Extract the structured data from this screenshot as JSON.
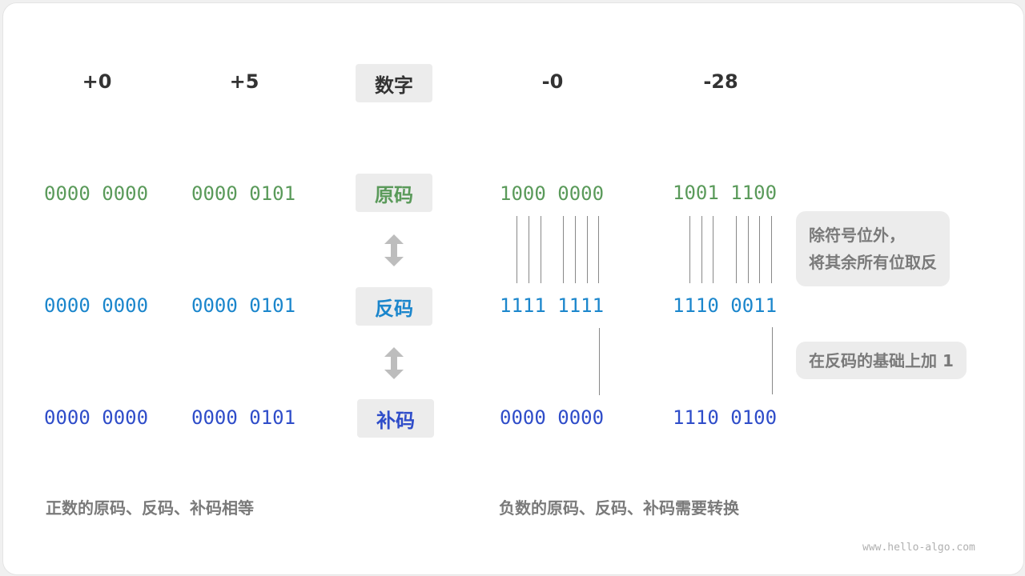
{
  "headers": {
    "pos0": "+0",
    "pos5": "+5",
    "label": "数字",
    "neg0": "-0",
    "neg28": "-28"
  },
  "labels": {
    "original": "原码",
    "ones": "反码",
    "twos": "补码"
  },
  "rows": {
    "original": [
      "0000 0000",
      "0000 0101",
      "1000 0000",
      "1001 1100"
    ],
    "ones": [
      "0000 0000",
      "0000 0101",
      "1111 1111",
      "1110 0011"
    ],
    "twos": [
      "0000 0000",
      "0000 0101",
      "0000 0000",
      "1110 0100"
    ]
  },
  "notes": {
    "invert_line1": "除符号位外，",
    "invert_line2": "将其余所有位取反",
    "add_one": "在反码的基础上加 1"
  },
  "captions": {
    "positive": "正数的原码、反码、补码相等",
    "negative": "负数的原码、反码、补码需要转换"
  },
  "watermark": "www.hello-algo.com",
  "colors": {
    "original": "#5a9a5a",
    "ones": "#1b86cc",
    "twos": "#2f4dc9"
  }
}
